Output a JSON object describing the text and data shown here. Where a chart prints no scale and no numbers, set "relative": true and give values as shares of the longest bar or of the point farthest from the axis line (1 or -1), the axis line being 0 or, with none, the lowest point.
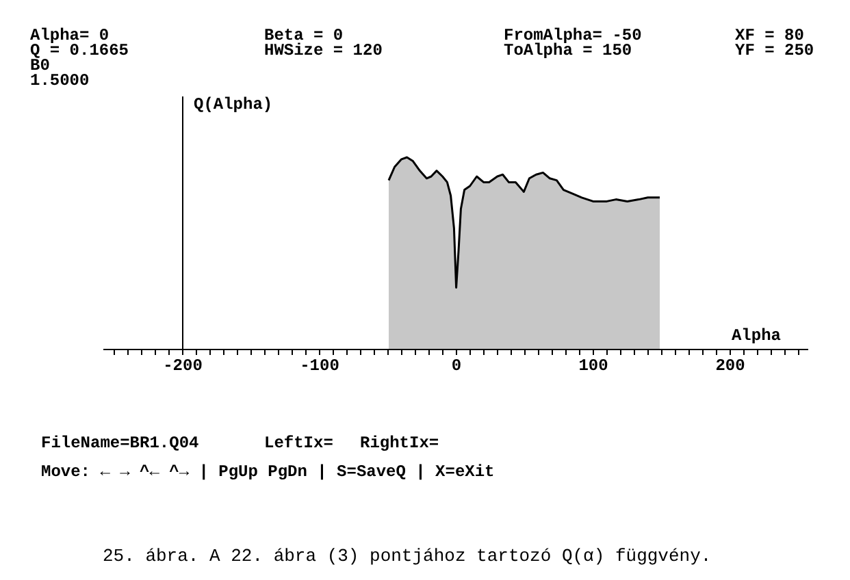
{
  "chart_data": {
    "type": "area",
    "relative": true,
    "xlabel": "Alpha",
    "ylabel": "Q(Alpha)",
    "x": [
      -49,
      -44.7,
      -39.7,
      -35.7,
      -31.3,
      -26.3,
      -21.3,
      -18,
      -14,
      -9.7,
      -6.3,
      -3.7,
      -1.3,
      0.3,
      2,
      3.7,
      6.3,
      10.3,
      15.3,
      20.3,
      24.3,
      30.3,
      34.3,
      38.7,
      43.7,
      49.7,
      53.7,
      58.7,
      63.7,
      68.7,
      73.7,
      78.7,
      85.3,
      92,
      100.3,
      110.3,
      117,
      125.3,
      133.7,
      140.3,
      149
    ],
    "series": [
      {
        "color": "#000000",
        "values": [
          0.88,
          0.95,
          0.99,
          1.0,
          0.98,
          0.93,
          0.89,
          0.9,
          0.93,
          0.9,
          0.87,
          0.8,
          0.63,
          0.32,
          0.51,
          0.73,
          0.83,
          0.85,
          0.9,
          0.87,
          0.87,
          0.9,
          0.91,
          0.87,
          0.87,
          0.82,
          0.89,
          0.91,
          0.92,
          0.89,
          0.88,
          0.83,
          0.81,
          0.79,
          0.77,
          0.77,
          0.78,
          0.77,
          0.78,
          0.79,
          0.79
        ]
      }
    ],
    "xlim": [
      -258,
      257
    ],
    "xticks": [
      -200,
      -100,
      0,
      100,
      200
    ],
    "annotations": [
      "Alpha=  0",
      "Q     =  0.1665",
      "B0",
      "1.5000",
      "Beta   = 0",
      "HWSize = 120",
      "FromAlpha= -50",
      "ToAlpha   = 150",
      "XF = 80",
      "YF = 250",
      "FileName=BR1.Q04",
      "LeftIx=",
      "RightIx=",
      "Move: ← → ^← ^→ | PgUp PgDn | S=SaveQ | X=eXit",
      "25. ábra. A 22. ábra (3) pontjához tartozó Q(α) függvény."
    ]
  }
}
